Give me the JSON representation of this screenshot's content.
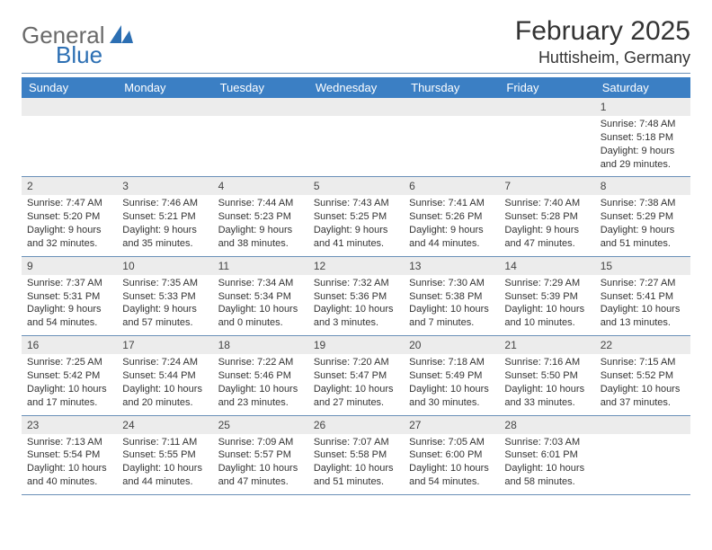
{
  "logo": {
    "text_gray": "General",
    "text_blue": "Blue",
    "mark_color": "#2c6fb3"
  },
  "title": "February 2025",
  "location": "Huttisheim, Germany",
  "colors": {
    "header_bg": "#3b7fc4",
    "header_text": "#ffffff",
    "daynum_bg": "#ececec",
    "rule": "#6a90b8",
    "body_text": "#333333"
  },
  "weekdays": [
    "Sunday",
    "Monday",
    "Tuesday",
    "Wednesday",
    "Thursday",
    "Friday",
    "Saturday"
  ],
  "weeks": [
    [
      null,
      null,
      null,
      null,
      null,
      null,
      {
        "n": "1",
        "sunrise": "7:48 AM",
        "sunset": "5:18 PM",
        "daylight": "9 hours and 29 minutes."
      }
    ],
    [
      {
        "n": "2",
        "sunrise": "7:47 AM",
        "sunset": "5:20 PM",
        "daylight": "9 hours and 32 minutes."
      },
      {
        "n": "3",
        "sunrise": "7:46 AM",
        "sunset": "5:21 PM",
        "daylight": "9 hours and 35 minutes."
      },
      {
        "n": "4",
        "sunrise": "7:44 AM",
        "sunset": "5:23 PM",
        "daylight": "9 hours and 38 minutes."
      },
      {
        "n": "5",
        "sunrise": "7:43 AM",
        "sunset": "5:25 PM",
        "daylight": "9 hours and 41 minutes."
      },
      {
        "n": "6",
        "sunrise": "7:41 AM",
        "sunset": "5:26 PM",
        "daylight": "9 hours and 44 minutes."
      },
      {
        "n": "7",
        "sunrise": "7:40 AM",
        "sunset": "5:28 PM",
        "daylight": "9 hours and 47 minutes."
      },
      {
        "n": "8",
        "sunrise": "7:38 AM",
        "sunset": "5:29 PM",
        "daylight": "9 hours and 51 minutes."
      }
    ],
    [
      {
        "n": "9",
        "sunrise": "7:37 AM",
        "sunset": "5:31 PM",
        "daylight": "9 hours and 54 minutes."
      },
      {
        "n": "10",
        "sunrise": "7:35 AM",
        "sunset": "5:33 PM",
        "daylight": "9 hours and 57 minutes."
      },
      {
        "n": "11",
        "sunrise": "7:34 AM",
        "sunset": "5:34 PM",
        "daylight": "10 hours and 0 minutes."
      },
      {
        "n": "12",
        "sunrise": "7:32 AM",
        "sunset": "5:36 PM",
        "daylight": "10 hours and 3 minutes."
      },
      {
        "n": "13",
        "sunrise": "7:30 AM",
        "sunset": "5:38 PM",
        "daylight": "10 hours and 7 minutes."
      },
      {
        "n": "14",
        "sunrise": "7:29 AM",
        "sunset": "5:39 PM",
        "daylight": "10 hours and 10 minutes."
      },
      {
        "n": "15",
        "sunrise": "7:27 AM",
        "sunset": "5:41 PM",
        "daylight": "10 hours and 13 minutes."
      }
    ],
    [
      {
        "n": "16",
        "sunrise": "7:25 AM",
        "sunset": "5:42 PM",
        "daylight": "10 hours and 17 minutes."
      },
      {
        "n": "17",
        "sunrise": "7:24 AM",
        "sunset": "5:44 PM",
        "daylight": "10 hours and 20 minutes."
      },
      {
        "n": "18",
        "sunrise": "7:22 AM",
        "sunset": "5:46 PM",
        "daylight": "10 hours and 23 minutes."
      },
      {
        "n": "19",
        "sunrise": "7:20 AM",
        "sunset": "5:47 PM",
        "daylight": "10 hours and 27 minutes."
      },
      {
        "n": "20",
        "sunrise": "7:18 AM",
        "sunset": "5:49 PM",
        "daylight": "10 hours and 30 minutes."
      },
      {
        "n": "21",
        "sunrise": "7:16 AM",
        "sunset": "5:50 PM",
        "daylight": "10 hours and 33 minutes."
      },
      {
        "n": "22",
        "sunrise": "7:15 AM",
        "sunset": "5:52 PM",
        "daylight": "10 hours and 37 minutes."
      }
    ],
    [
      {
        "n": "23",
        "sunrise": "7:13 AM",
        "sunset": "5:54 PM",
        "daylight": "10 hours and 40 minutes."
      },
      {
        "n": "24",
        "sunrise": "7:11 AM",
        "sunset": "5:55 PM",
        "daylight": "10 hours and 44 minutes."
      },
      {
        "n": "25",
        "sunrise": "7:09 AM",
        "sunset": "5:57 PM",
        "daylight": "10 hours and 47 minutes."
      },
      {
        "n": "26",
        "sunrise": "7:07 AM",
        "sunset": "5:58 PM",
        "daylight": "10 hours and 51 minutes."
      },
      {
        "n": "27",
        "sunrise": "7:05 AM",
        "sunset": "6:00 PM",
        "daylight": "10 hours and 54 minutes."
      },
      {
        "n": "28",
        "sunrise": "7:03 AM",
        "sunset": "6:01 PM",
        "daylight": "10 hours and 58 minutes."
      },
      null
    ]
  ],
  "labels": {
    "sunrise": "Sunrise: ",
    "sunset": "Sunset: ",
    "daylight": "Daylight: "
  }
}
